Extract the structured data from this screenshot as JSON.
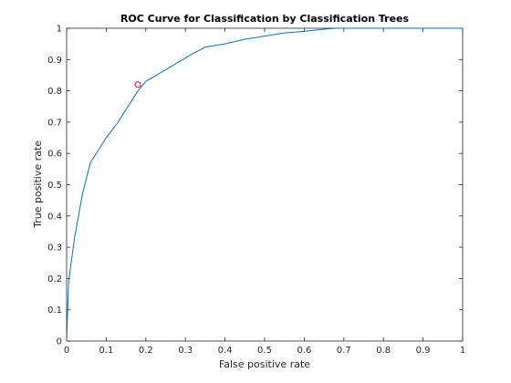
{
  "chart_data": {
    "type": "line",
    "title": "ROC Curve for Classification by Classification Trees",
    "xlabel": "False positive rate",
    "ylabel": "True positive rate",
    "xlim": [
      0,
      1
    ],
    "ylim": [
      0,
      1
    ],
    "xticks": [
      "0",
      "0.1",
      "0.2",
      "0.3",
      "0.4",
      "0.5",
      "0.6",
      "0.7",
      "0.8",
      "0.9",
      "1"
    ],
    "yticks": [
      "0",
      "0.1",
      "0.2",
      "0.3",
      "0.4",
      "0.5",
      "0.6",
      "0.7",
      "0.8",
      "0.9",
      "1"
    ],
    "grid": false,
    "series": [
      {
        "color": "#0072bd",
        "x": [
          0,
          0.005,
          0.02,
          0.04,
          0.06,
          0.08,
          0.1,
          0.13,
          0.16,
          0.18,
          0.2,
          0.24,
          0.28,
          0.32,
          0.35,
          0.4,
          0.45,
          0.5,
          0.55,
          0.6,
          0.65,
          0.68,
          0.75,
          0.85,
          0.95,
          1.0
        ],
        "y": [
          0,
          0.19,
          0.33,
          0.47,
          0.57,
          0.61,
          0.65,
          0.7,
          0.76,
          0.8,
          0.83,
          0.86,
          0.89,
          0.92,
          0.94,
          0.95,
          0.965,
          0.975,
          0.985,
          0.99,
          0.997,
          1.0,
          1.0,
          1.0,
          1.0,
          1.0
        ]
      }
    ],
    "marker_point": {
      "x": 0.18,
      "y": 0.82,
      "color": "#e0003c"
    }
  },
  "style": {
    "axes_color": "#262626",
    "background": "#ffffff"
  }
}
